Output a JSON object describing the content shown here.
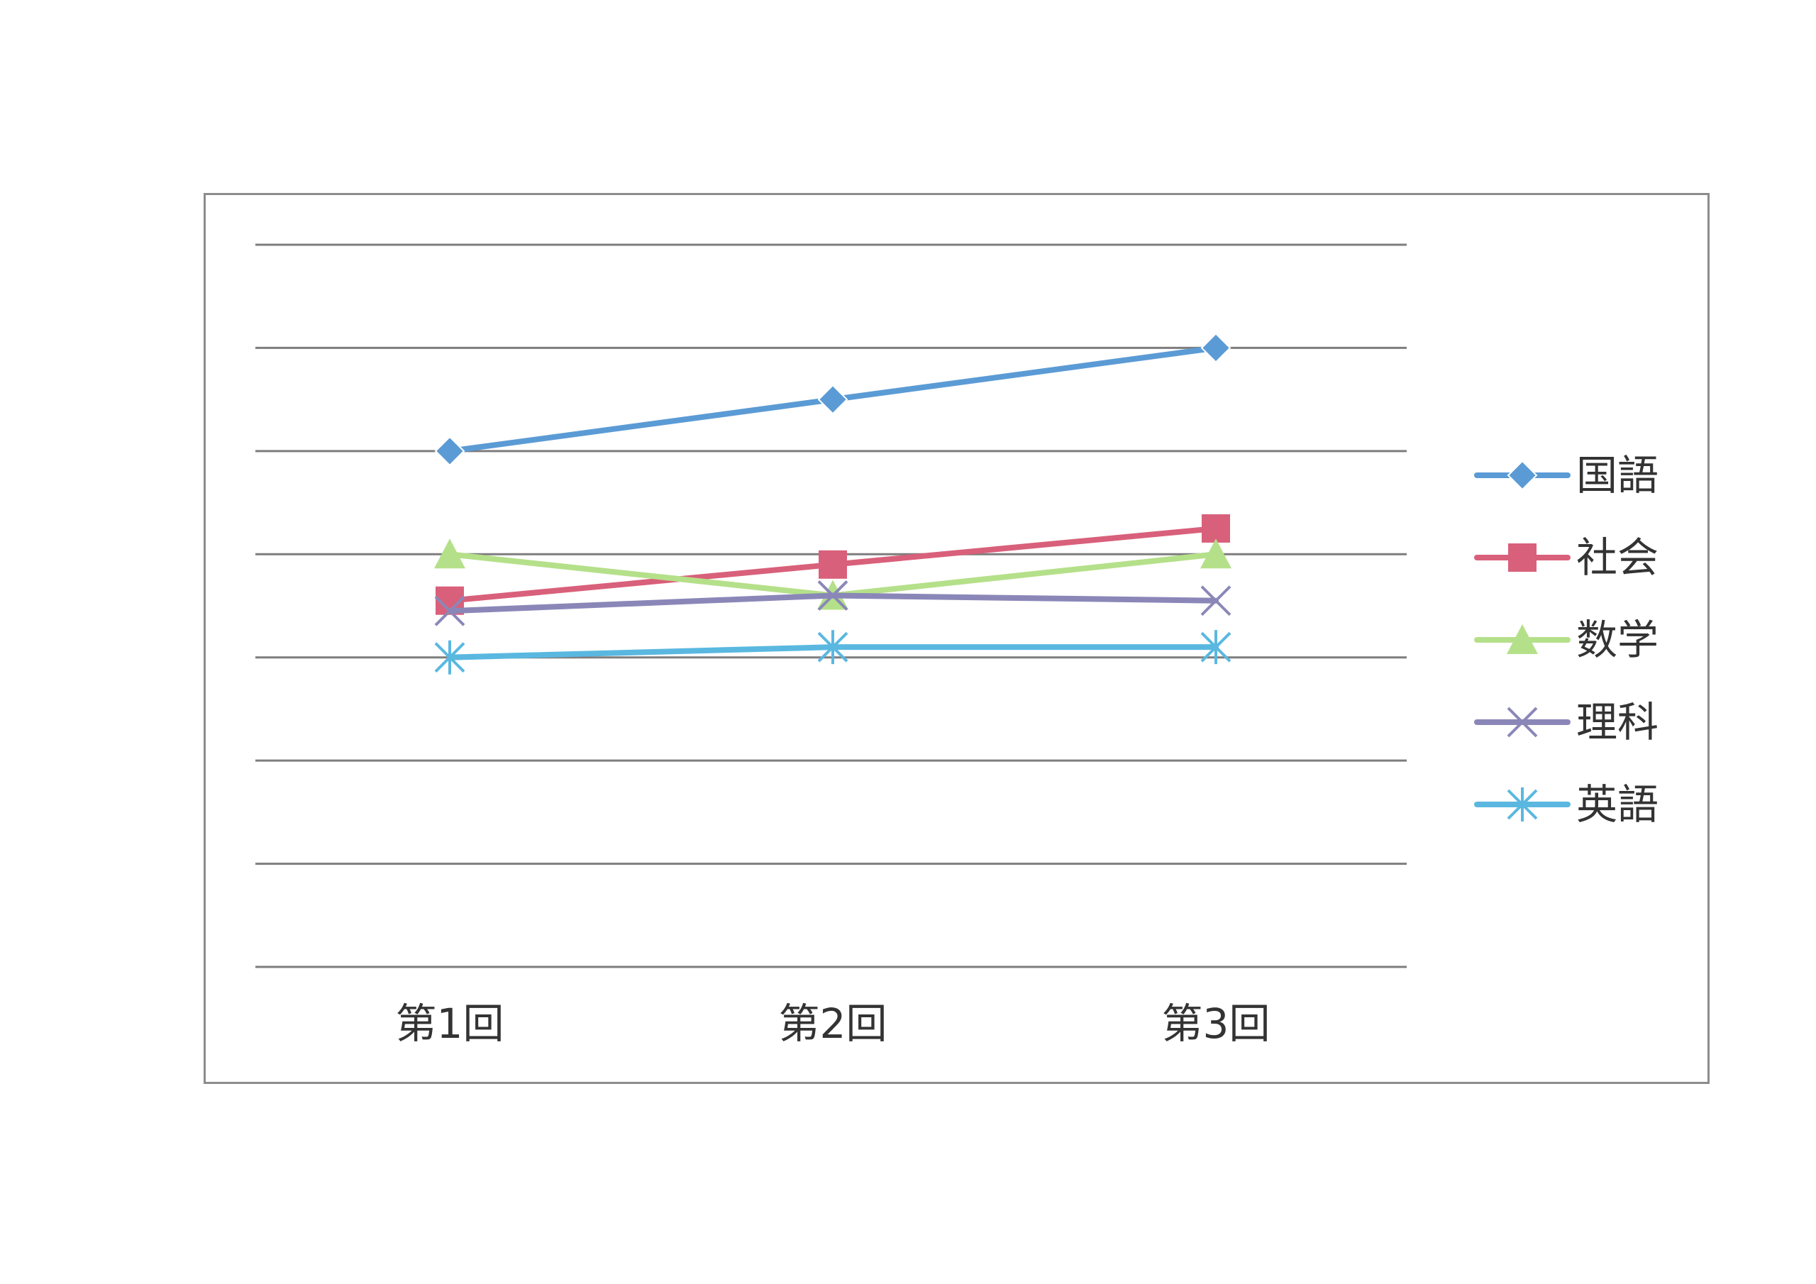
{
  "chart_data": {
    "type": "line",
    "categories": [
      "第1回",
      "第2回",
      "第3回"
    ],
    "ylim": [
      0,
      7
    ],
    "grid": true,
    "legend_position": "right",
    "series": [
      {
        "name": "国語",
        "values": [
          5.0,
          5.5,
          6.0
        ],
        "color": "#5b9bd5",
        "marker": "diamond"
      },
      {
        "name": "社会",
        "values": [
          3.55,
          3.9,
          4.25
        ],
        "color": "#d9607a",
        "marker": "square"
      },
      {
        "name": "数学",
        "values": [
          4.0,
          3.6,
          4.0
        ],
        "color": "#b5e08a",
        "marker": "triangle"
      },
      {
        "name": "理科",
        "values": [
          3.45,
          3.6,
          3.55
        ],
        "color": "#8a87b8",
        "marker": "x"
      },
      {
        "name": "英語",
        "values": [
          3.0,
          3.1,
          3.1
        ],
        "color": "#5ab8e0",
        "marker": "star"
      }
    ]
  }
}
